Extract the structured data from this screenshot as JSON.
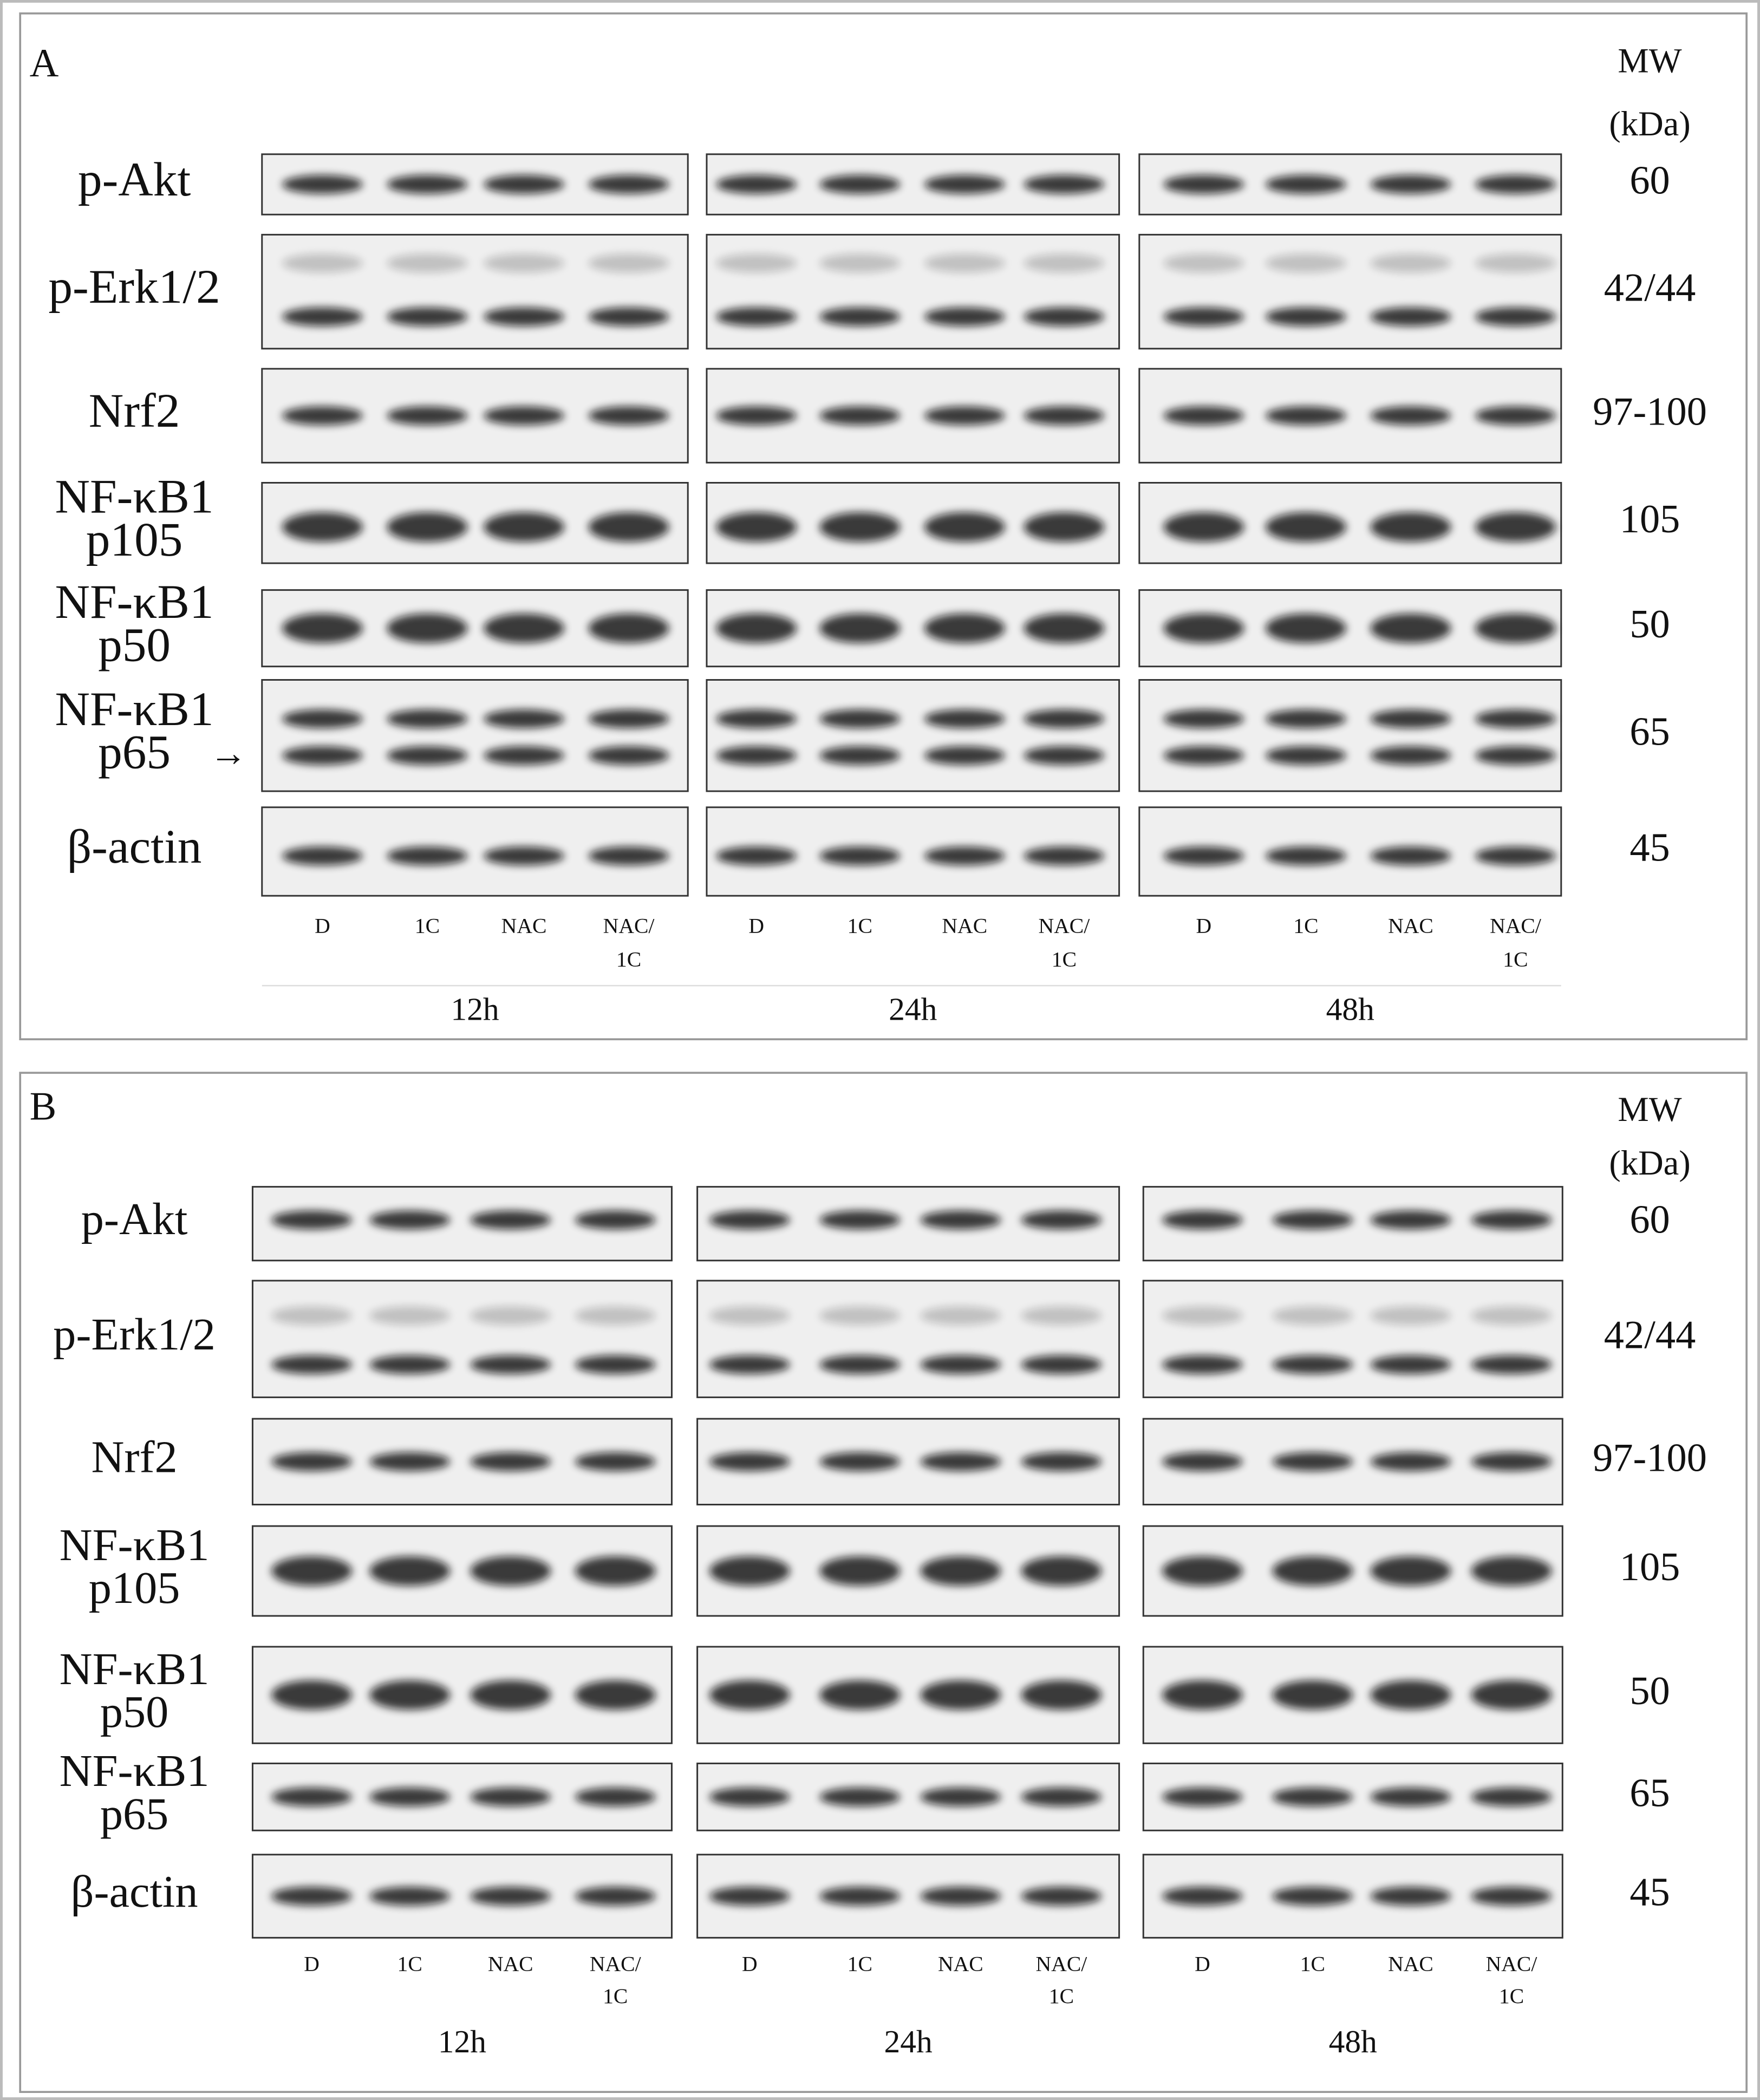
{
  "panels": [
    {
      "label": "A",
      "mw_header": [
        "MW",
        "(kDa)"
      ],
      "rows": [
        {
          "protein": [
            "p-Akt"
          ],
          "mw": "60"
        },
        {
          "protein": [
            "p-Erk1/2"
          ],
          "mw": "42/44"
        },
        {
          "protein": [
            "Nrf2"
          ],
          "mw": "97-100"
        },
        {
          "protein": [
            "NF-κB1",
            "p105"
          ],
          "mw": "105"
        },
        {
          "protein": [
            "NF-κB1",
            "p50"
          ],
          "mw": "50"
        },
        {
          "protein": [
            "NF-κB1",
            "p65"
          ],
          "mw": "65",
          "arrow": "→"
        },
        {
          "protein": [
            "β-actin"
          ],
          "mw": "45"
        }
      ],
      "lanes": [
        [
          "D"
        ],
        [
          "1C"
        ],
        [
          "NAC"
        ],
        [
          "NAC/",
          "1C"
        ]
      ],
      "groups": [
        "12h",
        "24h",
        "48h"
      ]
    },
    {
      "label": "B",
      "mw_header": [
        "MW",
        "(kDa)"
      ],
      "rows": [
        {
          "protein": [
            "p-Akt"
          ],
          "mw": "60"
        },
        {
          "protein": [
            "p-Erk1/2"
          ],
          "mw": "42/44"
        },
        {
          "protein": [
            "Nrf2"
          ],
          "mw": "97-100"
        },
        {
          "protein": [
            "NF-κB1",
            "p105"
          ],
          "mw": "105"
        },
        {
          "protein": [
            "NF-κB1",
            "p50"
          ],
          "mw": "50"
        },
        {
          "protein": [
            "NF-κB1",
            "p65"
          ],
          "mw": "65"
        },
        {
          "protein": [
            "β-actin"
          ],
          "mw": "45"
        }
      ],
      "lanes": [
        [
          "D"
        ],
        [
          "1C"
        ],
        [
          "NAC"
        ],
        [
          "NAC/",
          "1C"
        ]
      ],
      "groups": [
        "12h",
        "24h",
        "48h"
      ]
    }
  ]
}
